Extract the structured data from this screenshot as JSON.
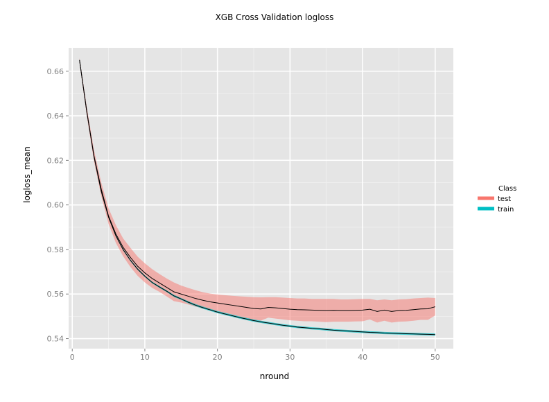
{
  "chart_data": {
    "type": "line",
    "title": "XGB Cross Validation logloss",
    "xlabel": "nround",
    "ylabel": "logloss_mean",
    "xlim": [
      -0.5,
      52.5
    ],
    "ylim": [
      0.5355,
      0.6705
    ],
    "x_ticks": [
      0,
      10,
      20,
      30,
      40,
      50
    ],
    "y_ticks": [
      0.54,
      0.56,
      0.58,
      0.6,
      0.62,
      0.64,
      0.66
    ],
    "y_tick_labels": [
      "0.54",
      "0.56",
      "0.58",
      "0.60",
      "0.62",
      "0.64",
      "0.66"
    ],
    "grid": true,
    "legend": {
      "title": "Class",
      "position": "right"
    },
    "x": [
      1,
      2,
      3,
      4,
      5,
      6,
      7,
      8,
      9,
      10,
      11,
      12,
      13,
      14,
      15,
      16,
      17,
      18,
      19,
      20,
      21,
      22,
      23,
      24,
      25,
      26,
      27,
      28,
      29,
      30,
      31,
      32,
      33,
      34,
      35,
      36,
      37,
      38,
      39,
      40,
      41,
      42,
      43,
      44,
      45,
      46,
      47,
      48,
      49,
      50
    ],
    "series": [
      {
        "name": "test",
        "color": "#F8766D",
        "mean": [
          0.665,
          0.642,
          0.622,
          0.607,
          0.595,
          0.587,
          0.581,
          0.5765,
          0.5725,
          0.5695,
          0.567,
          0.565,
          0.563,
          0.561,
          0.56,
          0.559,
          0.558,
          0.5572,
          0.5565,
          0.556,
          0.5555,
          0.555,
          0.5545,
          0.554,
          0.5535,
          0.5533,
          0.554,
          0.5538,
          0.5535,
          0.5532,
          0.553,
          0.5529,
          0.5528,
          0.5527,
          0.5526,
          0.5527,
          0.5526,
          0.5526,
          0.5527,
          0.5528,
          0.5532,
          0.5522,
          0.5528,
          0.5522,
          0.5526,
          0.5527,
          0.553,
          0.5533,
          0.5534,
          0.5543
        ],
        "upper": [
          0.666,
          0.644,
          0.6245,
          0.61,
          0.5985,
          0.591,
          0.585,
          0.5808,
          0.5768,
          0.5738,
          0.5712,
          0.569,
          0.567,
          0.5652,
          0.5638,
          0.5627,
          0.5617,
          0.5608,
          0.5602,
          0.5598,
          0.5595,
          0.5592,
          0.559,
          0.5588,
          0.5586,
          0.5585,
          0.5586,
          0.5586,
          0.5584,
          0.5582,
          0.558,
          0.558,
          0.5578,
          0.5578,
          0.5578,
          0.5578,
          0.5576,
          0.5576,
          0.5577,
          0.5578,
          0.5578,
          0.5572,
          0.5576,
          0.5572,
          0.5576,
          0.5577,
          0.558,
          0.5582,
          0.5584,
          0.5582
        ],
        "lower": [
          0.664,
          0.64,
          0.6195,
          0.604,
          0.5915,
          0.583,
          0.577,
          0.5722,
          0.5682,
          0.5652,
          0.5628,
          0.561,
          0.559,
          0.5568,
          0.5562,
          0.5553,
          0.5543,
          0.5536,
          0.5528,
          0.5522,
          0.5515,
          0.5508,
          0.55,
          0.5492,
          0.5484,
          0.5481,
          0.5494,
          0.549,
          0.5486,
          0.5482,
          0.548,
          0.5478,
          0.5478,
          0.5476,
          0.5474,
          0.5476,
          0.5476,
          0.5476,
          0.5477,
          0.5478,
          0.5486,
          0.5472,
          0.548,
          0.5472,
          0.5476,
          0.5477,
          0.548,
          0.5484,
          0.5484,
          0.5504
        ]
      },
      {
        "name": "train",
        "color": "#00BFC4",
        "mean": [
          0.665,
          0.6418,
          0.6215,
          0.606,
          0.5945,
          0.5862,
          0.58,
          0.5752,
          0.5712,
          0.568,
          0.5652,
          0.5632,
          0.5613,
          0.5592,
          0.5578,
          0.5563,
          0.555,
          0.5539,
          0.5529,
          0.5519,
          0.5511,
          0.5503,
          0.5495,
          0.5488,
          0.5481,
          0.5475,
          0.547,
          0.5465,
          0.546,
          0.5456,
          0.5452,
          0.5449,
          0.5446,
          0.5444,
          0.5441,
          0.5438,
          0.5436,
          0.5434,
          0.5432,
          0.543,
          0.5428,
          0.5427,
          0.5425,
          0.5424,
          0.5423,
          0.5422,
          0.5421,
          0.542,
          0.5419,
          0.5418
        ],
        "upper": [
          0.6653,
          0.6421,
          0.6218,
          0.6064,
          0.5949,
          0.5866,
          0.5804,
          0.5756,
          0.5716,
          0.5684,
          0.5656,
          0.5636,
          0.5617,
          0.5597,
          0.5582,
          0.5568,
          0.5555,
          0.5544,
          0.5534,
          0.5524,
          0.5516,
          0.5508,
          0.55,
          0.5493,
          0.5486,
          0.548,
          0.5475,
          0.547,
          0.5465,
          0.5461,
          0.5457,
          0.5454,
          0.5451,
          0.5449,
          0.5446,
          0.5443,
          0.5441,
          0.5439,
          0.5437,
          0.5435,
          0.5433,
          0.5432,
          0.543,
          0.5429,
          0.5428,
          0.5427,
          0.5426,
          0.5425,
          0.5424,
          0.5423
        ],
        "lower": [
          0.6647,
          0.6415,
          0.6212,
          0.6056,
          0.5941,
          0.5858,
          0.5796,
          0.5748,
          0.5708,
          0.5676,
          0.5648,
          0.5628,
          0.5609,
          0.5587,
          0.5574,
          0.5558,
          0.5545,
          0.5534,
          0.5524,
          0.5514,
          0.5506,
          0.5498,
          0.549,
          0.5483,
          0.5476,
          0.547,
          0.5465,
          0.546,
          0.5455,
          0.5451,
          0.5447,
          0.5444,
          0.5441,
          0.5439,
          0.5436,
          0.5433,
          0.5431,
          0.5429,
          0.5427,
          0.5425,
          0.5423,
          0.5422,
          0.542,
          0.5419,
          0.5418,
          0.5417,
          0.5416,
          0.5415,
          0.5414,
          0.5413
        ]
      }
    ]
  }
}
